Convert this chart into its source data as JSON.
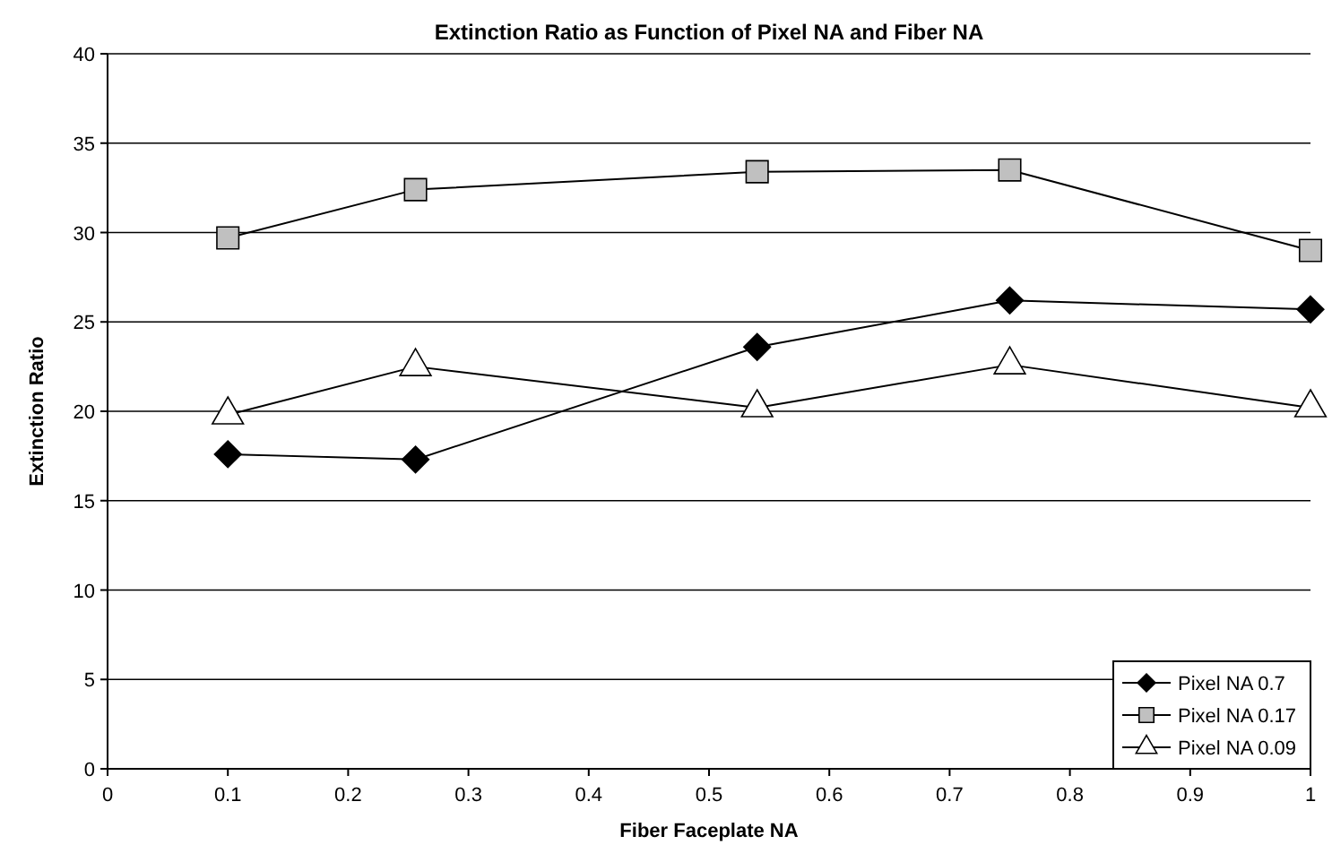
{
  "chart_data": {
    "type": "line",
    "title": "Extinction Ratio as Function of Pixel NA and Fiber NA",
    "xlabel": "Fiber Faceplate NA",
    "ylabel": "Extinction Ratio",
    "x": [
      0.1,
      0.256,
      0.54,
      0.75,
      1.0
    ],
    "series": [
      {
        "name": "Pixel NA 0.7",
        "color": "#000000",
        "marker": "diamond",
        "values": [
          17.6,
          17.3,
          23.6,
          26.2,
          25.7
        ]
      },
      {
        "name": "Pixel NA 0.17",
        "color": "#c0c0c0",
        "marker": "square",
        "values": [
          29.7,
          32.4,
          33.4,
          33.5,
          29.0
        ]
      },
      {
        "name": "Pixel NA 0.09",
        "color": "#ffffff",
        "marker": "triangle",
        "values": [
          19.8,
          22.5,
          20.2,
          22.6,
          20.2
        ]
      }
    ],
    "xlim": [
      0,
      1
    ],
    "xticks": [
      0,
      0.1,
      0.2,
      0.3,
      0.4,
      0.5,
      0.6,
      0.7,
      0.8,
      0.9,
      1
    ],
    "ylim": [
      0,
      40
    ],
    "yticks": [
      0,
      5,
      10,
      15,
      20,
      25,
      30,
      35,
      40
    ],
    "grid": "y",
    "legend": "bottom right"
  }
}
